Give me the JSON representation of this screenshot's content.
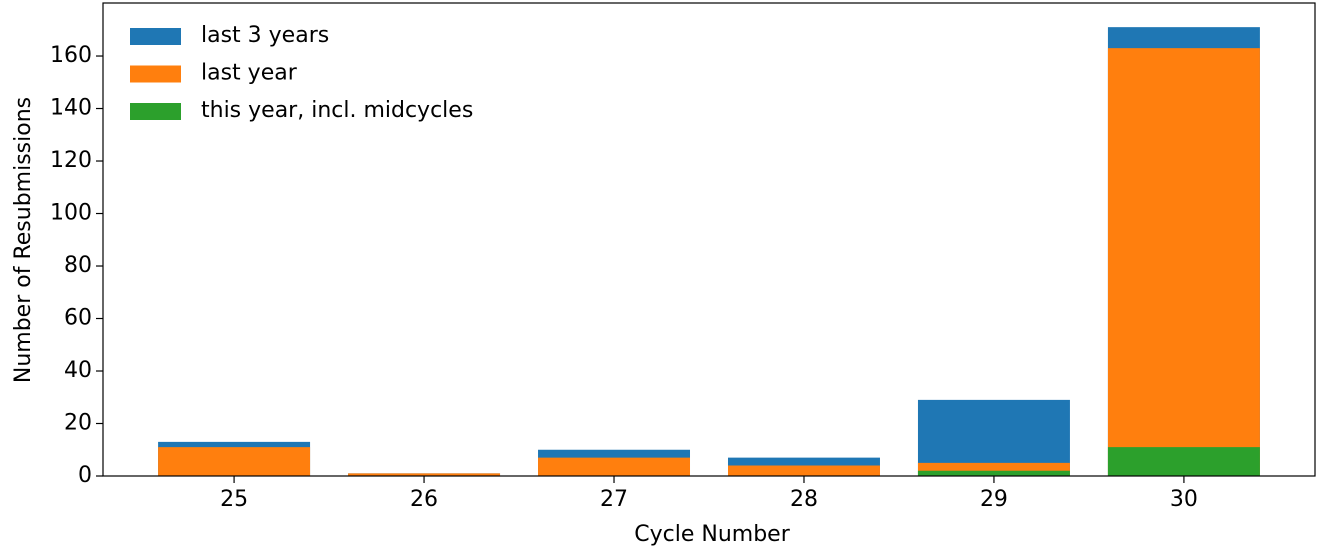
{
  "chart_data": {
    "type": "bar",
    "overlay": true,
    "x_label": "Cycle Number",
    "y_label": "Number of Resubmissions",
    "x": [
      25,
      26,
      27,
      28,
      29,
      30
    ],
    "series": [
      {
        "name": "last 3 years",
        "color": "#1f77b4",
        "values": [
          13,
          1,
          10,
          7,
          29,
          171
        ]
      },
      {
        "name": "last year",
        "color": "#ff7f0e",
        "values": [
          11,
          1,
          7,
          4,
          5,
          163
        ]
      },
      {
        "name": "this year, incl. midcycles",
        "color": "#2ca02c",
        "values": [
          0,
          0,
          0,
          0,
          2,
          11
        ]
      }
    ],
    "xlim": [
      24.31,
      30.69
    ],
    "xticks": [
      25,
      26,
      27,
      28,
      29,
      30
    ],
    "ylim": [
      0,
      180.2
    ],
    "yticks": [
      0,
      20,
      40,
      60,
      80,
      100,
      120,
      140,
      160
    ],
    "legend": "upper left",
    "grid": false
  }
}
